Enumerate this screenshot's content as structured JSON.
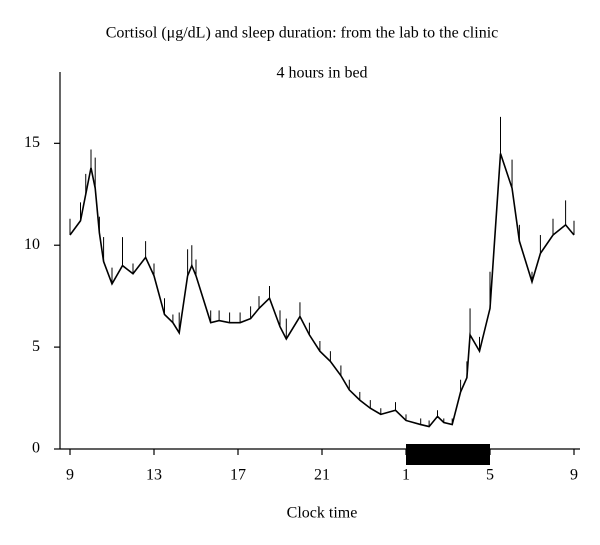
{
  "chart_data": {
    "type": "line",
    "title": "Cortisol (μg/dL) and sleep duration: from the lab to the clinic",
    "subtitle": "4 hours in bed",
    "x_label": "Clock time",
    "x": [
      0,
      0.5,
      0.75,
      1,
      1.2,
      1.4,
      1.6,
      2,
      2.5,
      3,
      3.6,
      4,
      4.5,
      4.9,
      5.2,
      5.6,
      5.8,
      6,
      6.7,
      7.1,
      7.6,
      8.1,
      8.6,
      9,
      9.5,
      10,
      10.3,
      10.95,
      11.4,
      11.9,
      12.4,
      12.9,
      13.3,
      13.8,
      14.3,
      14.8,
      15.5,
      16,
      16.7,
      17.1,
      17.5,
      17.8,
      18.2,
      18.6,
      18.9,
      19.05,
      19.5,
      20,
      20.5,
      21.05,
      21.4,
      22,
      22.4,
      23,
      23.6,
      24
    ],
    "series": [
      {
        "color": "#000000",
        "values": [
          10.5,
          11.2,
          12.5,
          13.8,
          12.8,
          10.6,
          9.2,
          8.1,
          9.0,
          8.6,
          9.4,
          8.5,
          6.6,
          6.2,
          5.7,
          8.5,
          9.0,
          8.5,
          6.2,
          6.3,
          6.2,
          6.2,
          6.4,
          6.9,
          7.4,
          6.0,
          5.4,
          6.5,
          5.6,
          4.8,
          4.3,
          3.6,
          2.9,
          2.4,
          2.0,
          1.7,
          1.9,
          1.4,
          1.2,
          1.1,
          1.6,
          1.3,
          1.2,
          2.8,
          3.5,
          5.6,
          4.8,
          6.9,
          14.5,
          12.8,
          10.2,
          8.2,
          9.6,
          10.5,
          11.0,
          10.5
        ],
        "errors": [
          0.8,
          0.9,
          1.0,
          0.9,
          1.5,
          0.8,
          1.2,
          0.8,
          1.4,
          0.5,
          0.8,
          0.6,
          0.8,
          0.4,
          1.0,
          1.3,
          1.0,
          0.8,
          0.6,
          0.5,
          0.5,
          0.5,
          0.6,
          0.6,
          0.6,
          0.8,
          1.0,
          0.7,
          0.6,
          0.5,
          0.5,
          0.5,
          0.5,
          0.4,
          0.4,
          0.3,
          0.4,
          0.3,
          0.3,
          0.3,
          0.3,
          0.2,
          0.3,
          0.6,
          0.8,
          1.3,
          0.7,
          1.8,
          1.8,
          1.4,
          0.8,
          0.5,
          0.9,
          0.8,
          1.2,
          0.7
        ]
      }
    ],
    "sleep_period": [
      16,
      20
    ],
    "xlim": [
      0,
      24
    ],
    "xticks": [
      {
        "value": 0,
        "label": "9"
      },
      {
        "value": 4,
        "label": "13"
      },
      {
        "value": 8,
        "label": "17"
      },
      {
        "value": 12,
        "label": "21"
      },
      {
        "value": 16,
        "label": "1"
      },
      {
        "value": 20,
        "label": "5"
      },
      {
        "value": 24,
        "label": "9"
      }
    ],
    "ylim": [
      0,
      18.5
    ],
    "yticks": [
      0,
      5,
      10,
      15
    ],
    "grid": false
  }
}
